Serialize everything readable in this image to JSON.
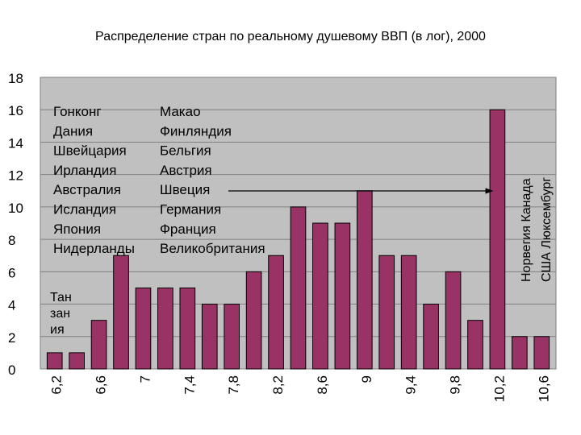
{
  "chart_data": {
    "type": "bar",
    "title": "Распределение стран по реальному душевому ВВП (в лог), 2000",
    "xlabel": "",
    "ylabel": "",
    "ylim": [
      0,
      18
    ],
    "yticks": [
      "0",
      "2",
      "4",
      "6",
      "8",
      "10",
      "12",
      "14",
      "16",
      "18"
    ],
    "xtick_labels": [
      "6,2",
      "6,6",
      "7",
      "7,4",
      "7,8",
      "8,2",
      "8,6",
      "9",
      "9,4",
      "9,8",
      "10,2",
      "10,6"
    ],
    "values": [
      1,
      1,
      3,
      7,
      5,
      5,
      5,
      4,
      4,
      6,
      7,
      10,
      9,
      9,
      11,
      7,
      7,
      4,
      6,
      3,
      16,
      2,
      2
    ],
    "grid": true,
    "bar_color": "#993366",
    "plot_background": "#c0c0c0",
    "annotations": {
      "left_column": [
        "Гонконг",
        "Дания",
        "Швейцария",
        "Ирландия",
        "Австралия",
        "Исландия",
        "Япония",
        "Нидерланды"
      ],
      "right_column": [
        "Макао",
        "Финляндия",
        "Бельгия",
        "Австрия",
        "Швеция",
        "Германия",
        "Франция",
        "Великобритания"
      ],
      "bottom_left": [
        "Тан",
        "зан",
        "ия"
      ],
      "vertical_top": [
        "Норвегия Канада",
        "США Люксембург"
      ]
    }
  }
}
